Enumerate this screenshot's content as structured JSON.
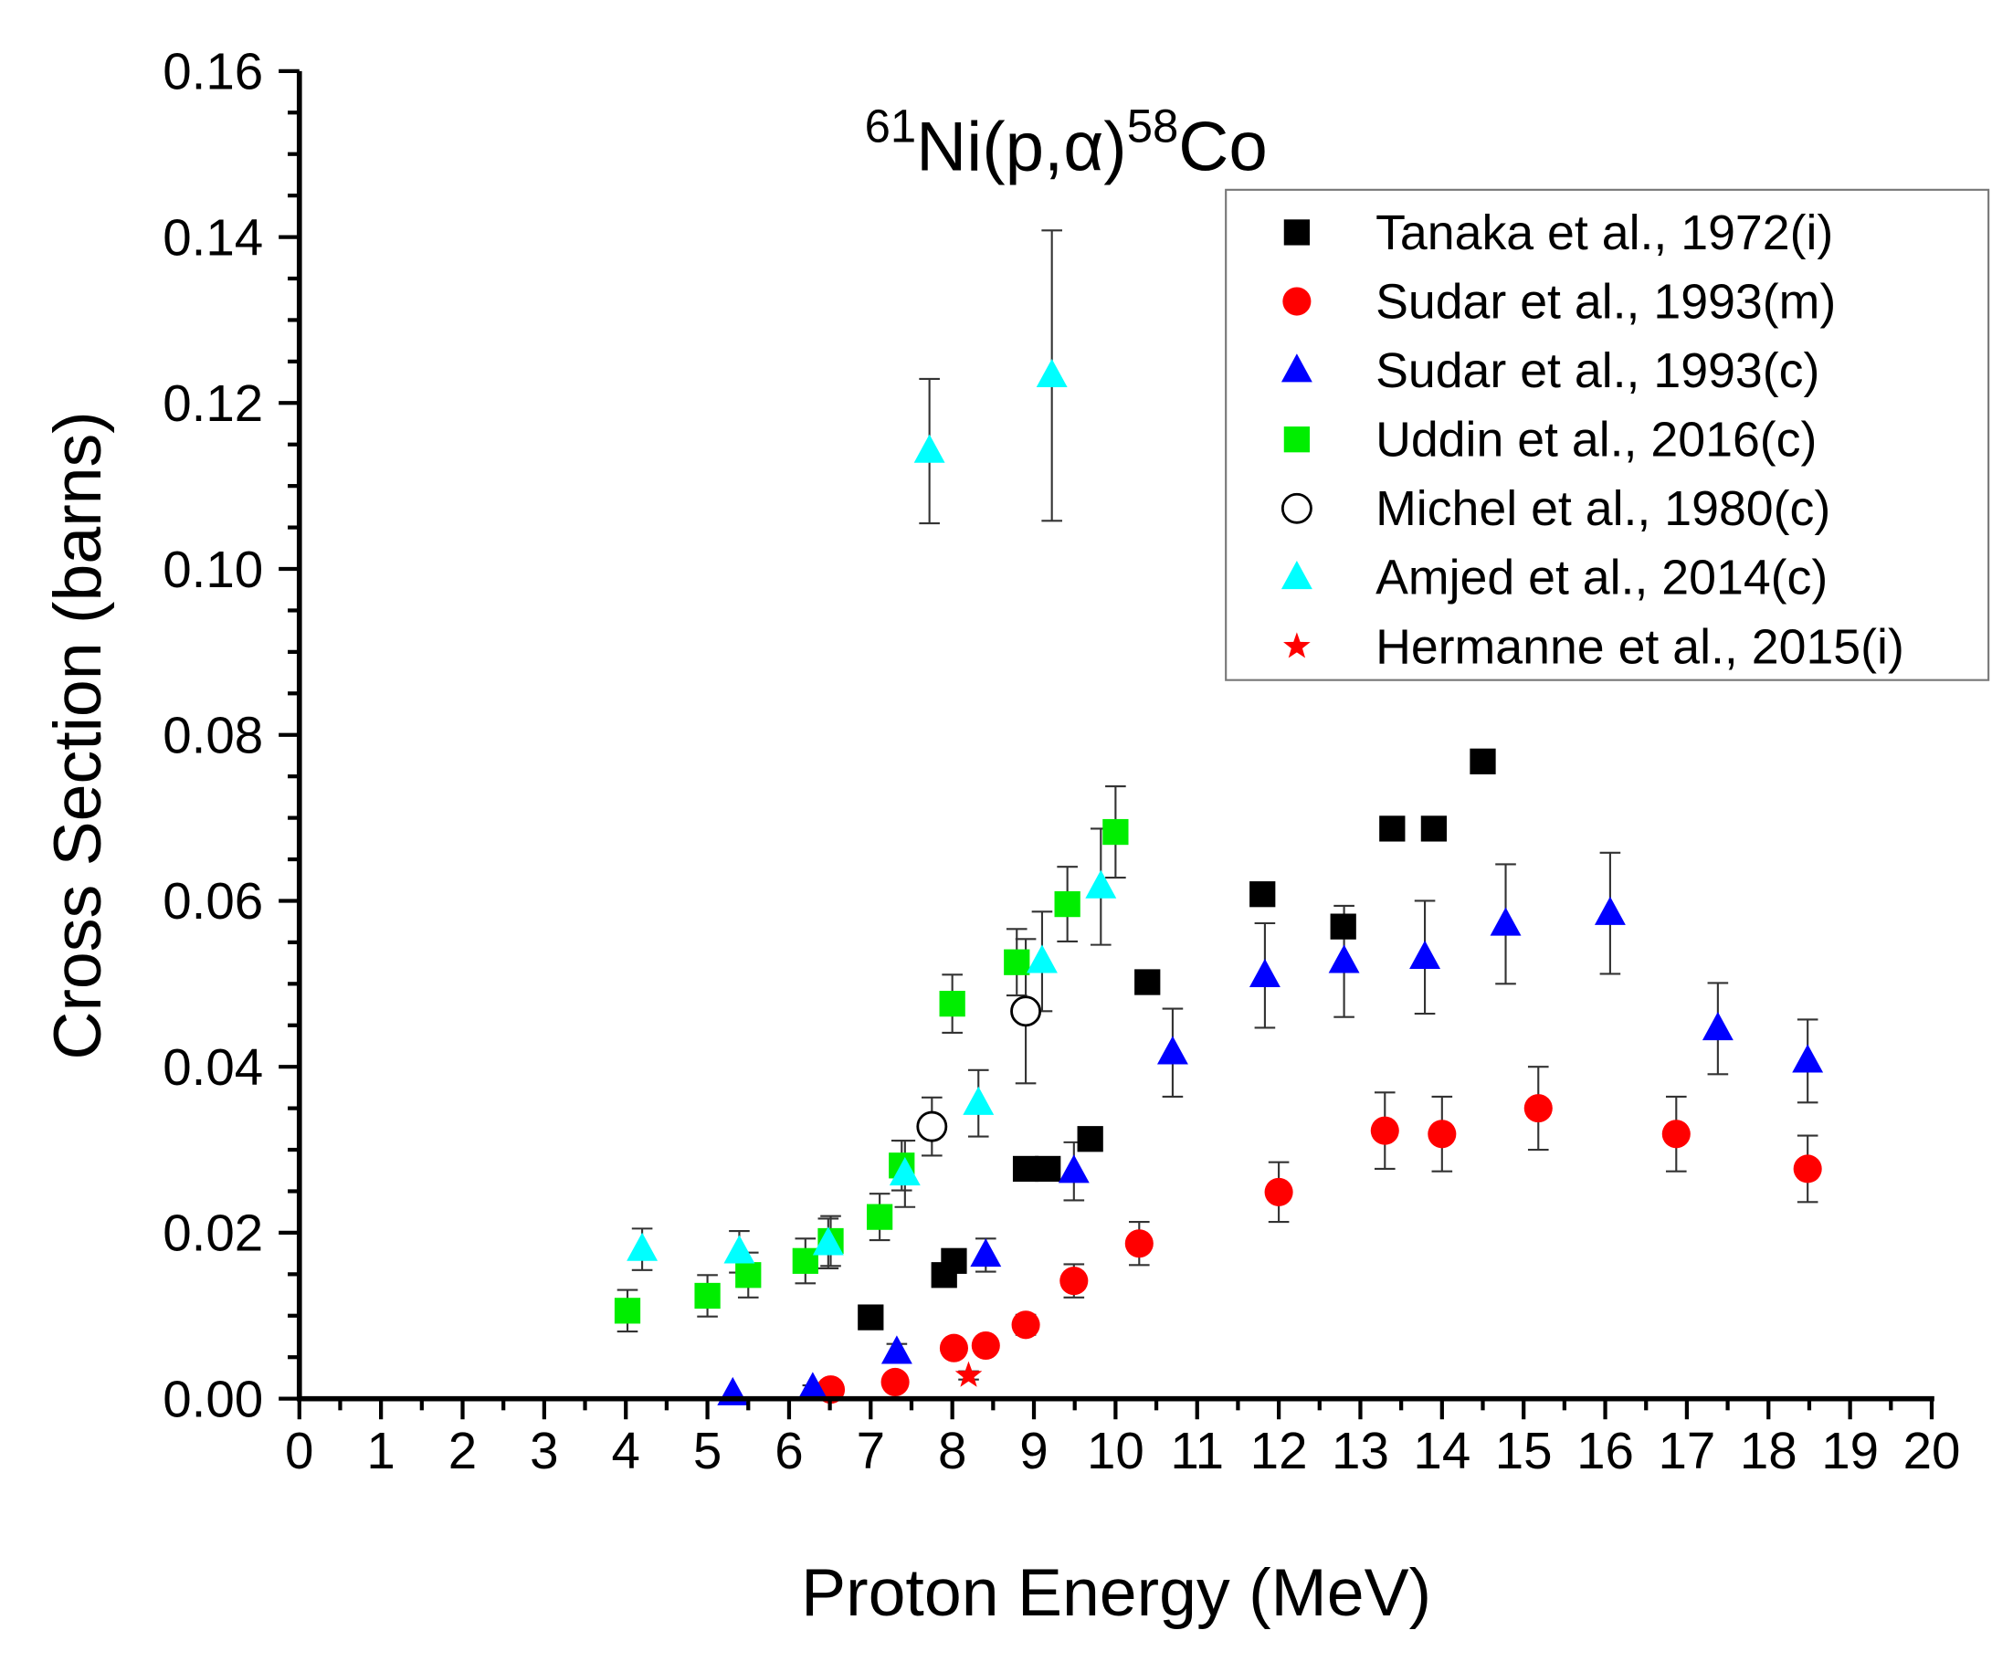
{
  "chart_data": {
    "type": "scatter",
    "title": {
      "pre_sup": "61",
      "main": "Ni(p,α)",
      "mid_sup": "58",
      "end": "Co"
    },
    "xlabel": "Proton Energy (MeV)",
    "ylabel": "Cross Section (barns)",
    "xlim": [
      0,
      20
    ],
    "ylim": [
      0,
      0.16
    ],
    "xticks": [
      "0",
      "1",
      "2",
      "3",
      "4",
      "5",
      "6",
      "7",
      "8",
      "9",
      "10",
      "11",
      "12",
      "13",
      "14",
      "15",
      "16",
      "17",
      "18",
      "19",
      "20"
    ],
    "yticks": [
      "0.00",
      "0.02",
      "0.04",
      "0.06",
      "0.08",
      "0.10",
      "0.12",
      "0.14",
      "0.16"
    ],
    "grid": false,
    "legend_position": "top-right",
    "series": [
      {
        "name": "Tanaka et al., 1972(i)",
        "marker": "square",
        "color": "#000000",
        "fill": true,
        "points": [
          [
            7.0,
            0.0098,
            0
          ],
          [
            7.9,
            0.0149,
            0
          ],
          [
            8.02,
            0.0166,
            0
          ],
          [
            8.9,
            0.0277,
            0
          ],
          [
            9.17,
            0.0277,
            0
          ],
          [
            9.69,
            0.0313,
            0
          ],
          [
            10.39,
            0.0502,
            0
          ],
          [
            11.8,
            0.0608,
            0
          ],
          [
            12.79,
            0.0569,
            0
          ],
          [
            13.39,
            0.0687,
            0
          ],
          [
            13.9,
            0.0687,
            0
          ],
          [
            14.5,
            0.0768,
            0
          ]
        ]
      },
      {
        "name": "Sudar et al., 1993(m)",
        "marker": "circle",
        "color": "#ff0000",
        "fill": true,
        "points": [
          [
            6.51,
            0.0011,
            0.0005
          ],
          [
            7.3,
            0.002,
            0.0006
          ],
          [
            8.02,
            0.0061,
            0.001
          ],
          [
            8.41,
            0.0064,
            0.001
          ],
          [
            8.9,
            0.0089,
            0.0012
          ],
          [
            9.49,
            0.0142,
            0.002
          ],
          [
            10.29,
            0.0187,
            0.0026
          ],
          [
            12.0,
            0.0249,
            0.0036
          ],
          [
            13.3,
            0.0323,
            0.0046
          ],
          [
            14.0,
            0.0319,
            0.0045
          ],
          [
            15.18,
            0.035,
            0.005
          ],
          [
            16.87,
            0.0319,
            0.0045
          ],
          [
            18.48,
            0.0277,
            0.004
          ]
        ]
      },
      {
        "name": "Sudar et al., 1993(c)",
        "marker": "triangle",
        "color": "#0000ff",
        "fill": true,
        "points": [
          [
            5.31,
            0.0006,
            0
          ],
          [
            6.29,
            0.0012,
            0.0004
          ],
          [
            7.32,
            0.0056,
            0.001
          ],
          [
            8.41,
            0.0173,
            0.002
          ],
          [
            9.49,
            0.0274,
            0.0035
          ],
          [
            10.7,
            0.0417,
            0.0053
          ],
          [
            11.83,
            0.051,
            0.0063
          ],
          [
            12.8,
            0.0527,
            0.0067
          ],
          [
            13.79,
            0.0532,
            0.0068
          ],
          [
            14.78,
            0.0572,
            0.0072
          ],
          [
            16.06,
            0.0585,
            0.0073
          ],
          [
            17.38,
            0.0446,
            0.0055
          ],
          [
            18.48,
            0.0407,
            0.005
          ]
        ]
      },
      {
        "name": "Uddin et al., 2016(c)",
        "marker": "square",
        "color": "#00ee00",
        "fill": true,
        "points": [
          [
            4.02,
            0.0106,
            0.0025
          ],
          [
            5.0,
            0.0124,
            0.0025
          ],
          [
            5.5,
            0.0149,
            0.0027
          ],
          [
            6.2,
            0.0166,
            0.0027
          ],
          [
            6.51,
            0.019,
            0.003
          ],
          [
            7.11,
            0.0219,
            0.0028
          ],
          [
            7.38,
            0.0281,
            0.003
          ],
          [
            8.0,
            0.0476,
            0.0035
          ],
          [
            8.79,
            0.0526,
            0.004
          ],
          [
            9.41,
            0.0596,
            0.0045
          ],
          [
            10.0,
            0.0683,
            0.0055
          ]
        ]
      },
      {
        "name": "Michel et al., 1980(c)",
        "marker": "circle",
        "color": "#000000",
        "fill": false,
        "points": [
          [
            7.75,
            0.0328,
            0.0035
          ],
          [
            8.9,
            0.0467,
            0.0087
          ]
        ]
      },
      {
        "name": "Amjed et al., 2014(c)",
        "marker": "triangle",
        "color": "#00ffff",
        "fill": true,
        "points": [
          [
            4.2,
            0.018,
            0.0025
          ],
          [
            5.39,
            0.0177,
            0.0025
          ],
          [
            6.48,
            0.0187,
            0.003
          ],
          [
            7.42,
            0.0271,
            0.004
          ],
          [
            7.72,
            0.1142,
            0.0087
          ],
          [
            8.32,
            0.0356,
            0.004
          ],
          [
            9.1,
            0.0527,
            0.006
          ],
          [
            9.22,
            0.1233,
            0.0175
          ],
          [
            9.82,
            0.0617,
            0.007
          ]
        ]
      },
      {
        "name": "Hermanne et al., 2015(i)",
        "marker": "star",
        "color": "#ff0000",
        "fill": true,
        "points": [
          [
            8.2,
            0.0028,
            0.0005
          ]
        ]
      }
    ]
  }
}
